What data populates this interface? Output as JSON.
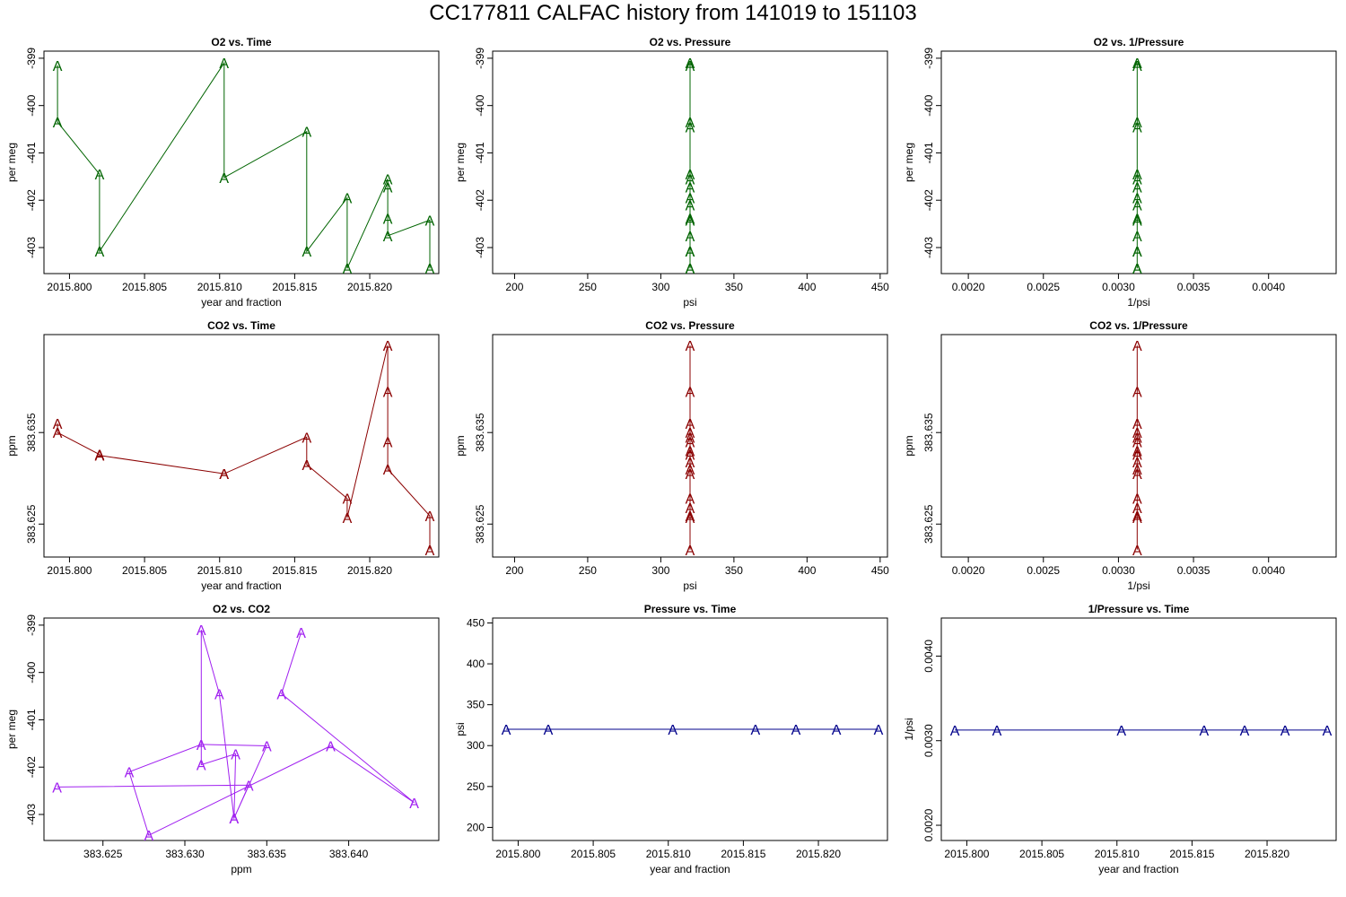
{
  "page": {
    "title": "CC177811   CALFAC history from  141019  to  151103"
  },
  "colors": {
    "o2": "#006400",
    "co2": "#8B0000",
    "o2co2": "#A020F0",
    "pressure": "#00008B",
    "frame": "#000000"
  },
  "chart_data": [
    {
      "type": "line",
      "title": "O2 vs. Time",
      "xlabel": "year and fraction",
      "ylabel": "per meg",
      "color_key": "o2",
      "xlim": [
        2015.7983,
        2015.8246
      ],
      "ylim": [
        -403.55,
        -398.85
      ],
      "xticks": [
        2015.8,
        2015.805,
        2015.81,
        2015.815,
        2015.82
      ],
      "xtick_labels": [
        "2015.800",
        "2015.805",
        "2015.810",
        "2015.815",
        "2015.820"
      ],
      "yticks": [
        -403,
        -402,
        -401,
        -400,
        -399
      ],
      "ytick_labels": [
        "-403",
        "-402",
        "-401",
        "-400",
        "-399"
      ],
      "ytick_rotate": true,
      "marker": "A",
      "x": [
        2015.7992,
        2015.7992,
        2015.802,
        2015.802,
        2015.8103,
        2015.8103,
        2015.8158,
        2015.8158,
        2015.8185,
        2015.8185,
        2015.8212,
        2015.8212,
        2015.8212,
        2015.8212,
        2015.824,
        2015.824
      ],
      "y": [
        -399.15,
        -400.35,
        -401.45,
        -403.08,
        -399.1,
        -401.52,
        -400.55,
        -403.08,
        -401.95,
        -403.44,
        -401.55,
        -401.72,
        -402.38,
        -402.75,
        -402.42,
        -403.44
      ]
    },
    {
      "type": "line",
      "title": "O2 vs. Pressure",
      "xlabel": "psi",
      "ylabel": "per meg",
      "color_key": "o2",
      "xlim": [
        185,
        455
      ],
      "ylim": [
        -403.55,
        -398.85
      ],
      "xticks": [
        200,
        250,
        300,
        350,
        400,
        450
      ],
      "xtick_labels": [
        "200",
        "250",
        "300",
        "350",
        "400",
        "450"
      ],
      "yticks": [
        -403,
        -402,
        -401,
        -400,
        -399
      ],
      "ytick_labels": [
        "-403",
        "-402",
        "-401",
        "-400",
        "-399"
      ],
      "ytick_rotate": true,
      "marker": "A",
      "x": [
        320,
        320,
        320,
        320,
        320,
        320,
        320,
        320,
        320,
        320,
        320,
        320,
        320,
        320,
        320,
        320
      ],
      "y": [
        -399.1,
        -399.15,
        -400.35,
        -400.45,
        -401.45,
        -401.55,
        -401.72,
        -401.95,
        -402.1,
        -402.38,
        -402.42,
        -402.75,
        -403.08,
        -403.08,
        -403.44,
        -403.44
      ]
    },
    {
      "type": "line",
      "title": "O2 vs. 1/Pressure",
      "xlabel": "1/psi",
      "ylabel": "per meg",
      "color_key": "o2",
      "xlim": [
        0.00182,
        0.00445
      ],
      "ylim": [
        -403.55,
        -398.85
      ],
      "xticks": [
        0.002,
        0.0025,
        0.003,
        0.0035,
        0.004
      ],
      "xtick_labels": [
        "0.0020",
        "0.0025",
        "0.0030",
        "0.0035",
        "0.0040"
      ],
      "yticks": [
        -403,
        -402,
        -401,
        -400,
        -399
      ],
      "ytick_labels": [
        "-403",
        "-402",
        "-401",
        "-400",
        "-399"
      ],
      "ytick_rotate": true,
      "marker": "A",
      "x": [
        0.003125,
        0.003125,
        0.003125,
        0.003125,
        0.003125,
        0.003125,
        0.003125,
        0.003125,
        0.003125,
        0.003125,
        0.003125,
        0.003125,
        0.003125,
        0.003125,
        0.003125,
        0.003125
      ],
      "y": [
        -399.1,
        -399.15,
        -400.35,
        -400.45,
        -401.45,
        -401.55,
        -401.72,
        -401.95,
        -402.1,
        -402.38,
        -402.42,
        -402.75,
        -403.08,
        -403.08,
        -403.44,
        -403.44
      ]
    },
    {
      "type": "line",
      "title": "CO2 vs. Time",
      "xlabel": "year and fraction",
      "ylabel": "ppm",
      "color_key": "co2",
      "xlim": [
        2015.7983,
        2015.8246
      ],
      "ylim": [
        383.6214,
        383.6457
      ],
      "xticks": [
        2015.8,
        2015.805,
        2015.81,
        2015.815,
        2015.82
      ],
      "xtick_labels": [
        "2015.800",
        "2015.805",
        "2015.810",
        "2015.815",
        "2015.820"
      ],
      "yticks": [
        383.625,
        383.635
      ],
      "ytick_labels": [
        "383.625",
        "383.635"
      ],
      "ytick_rotate": true,
      "marker": "A",
      "x": [
        2015.7992,
        2015.7992,
        2015.802,
        2015.802,
        2015.8103,
        2015.8103,
        2015.8158,
        2015.8158,
        2015.8185,
        2015.8185,
        2015.8212,
        2015.8212,
        2015.8212,
        2015.8212,
        2015.824,
        2015.824
      ],
      "y": [
        383.636,
        383.635,
        383.6326,
        383.6325,
        383.6305,
        383.6305,
        383.6345,
        383.6315,
        383.6278,
        383.6257,
        383.6445,
        383.6395,
        383.634,
        383.631,
        383.6259,
        383.6222
      ]
    },
    {
      "type": "line",
      "title": "CO2 vs. Pressure",
      "xlabel": "psi",
      "ylabel": "ppm",
      "color_key": "co2",
      "xlim": [
        185,
        455
      ],
      "ylim": [
        383.6214,
        383.6457
      ],
      "xticks": [
        200,
        250,
        300,
        350,
        400,
        450
      ],
      "xtick_labels": [
        "200",
        "250",
        "300",
        "350",
        "400",
        "450"
      ],
      "yticks": [
        383.625,
        383.635
      ],
      "ytick_labels": [
        "383.625",
        "383.635"
      ],
      "ytick_rotate": true,
      "marker": "A",
      "x": [
        320,
        320,
        320,
        320,
        320,
        320,
        320,
        320,
        320,
        320,
        320,
        320,
        320,
        320,
        320,
        320
      ],
      "y": [
        383.6445,
        383.6395,
        383.636,
        383.635,
        383.6345,
        383.634,
        383.633,
        383.6326,
        383.6318,
        383.631,
        383.6305,
        383.6278,
        383.6268,
        383.6259,
        383.6257,
        383.6222
      ]
    },
    {
      "type": "line",
      "title": "CO2 vs. 1/Pressure",
      "xlabel": "1/psi",
      "ylabel": "ppm",
      "color_key": "co2",
      "xlim": [
        0.00182,
        0.00445
      ],
      "ylim": [
        383.6214,
        383.6457
      ],
      "xticks": [
        0.002,
        0.0025,
        0.003,
        0.0035,
        0.004
      ],
      "xtick_labels": [
        "0.0020",
        "0.0025",
        "0.0030",
        "0.0035",
        "0.0040"
      ],
      "yticks": [
        383.625,
        383.635
      ],
      "ytick_labels": [
        "383.625",
        "383.635"
      ],
      "ytick_rotate": true,
      "marker": "A",
      "x": [
        0.003125,
        0.003125,
        0.003125,
        0.003125,
        0.003125,
        0.003125,
        0.003125,
        0.003125,
        0.003125,
        0.003125,
        0.003125,
        0.003125,
        0.003125,
        0.003125,
        0.003125,
        0.003125
      ],
      "y": [
        383.6445,
        383.6395,
        383.636,
        383.635,
        383.6345,
        383.634,
        383.633,
        383.6326,
        383.6318,
        383.631,
        383.6305,
        383.6278,
        383.6268,
        383.6259,
        383.6257,
        383.6222
      ]
    },
    {
      "type": "line",
      "title": "O2 vs. CO2",
      "xlabel": "ppm",
      "ylabel": "per meg",
      "color_key": "o2co2",
      "xlim": [
        383.6214,
        383.6455
      ],
      "ylim": [
        -403.55,
        -398.85
      ],
      "xticks": [
        383.625,
        383.63,
        383.635,
        383.64
      ],
      "xtick_labels": [
        "383.625",
        "383.630",
        "383.635",
        "383.640"
      ],
      "yticks": [
        -403,
        -402,
        -401,
        -400,
        -399
      ],
      "ytick_labels": [
        "-403",
        "-402",
        "-401",
        "-400",
        "-399"
      ],
      "ytick_rotate": true,
      "marker": "A",
      "x": [
        383.6222,
        383.6339,
        383.633,
        383.6331,
        383.631,
        383.631,
        383.6321,
        383.633,
        383.635,
        383.631,
        383.6266,
        383.6278,
        383.6389,
        383.644,
        383.6359,
        383.6371
      ],
      "y": [
        -402.42,
        -402.38,
        -403.08,
        -401.72,
        -401.95,
        -399.1,
        -400.45,
        -403.08,
        -401.55,
        -401.52,
        -402.1,
        -403.44,
        -401.55,
        -402.75,
        -400.45,
        -399.15
      ]
    },
    {
      "type": "line",
      "title": "Pressure vs. Time",
      "xlabel": "year and fraction",
      "ylabel": "psi",
      "color_key": "pressure",
      "xlim": [
        2015.7983,
        2015.8246
      ],
      "ylim": [
        184,
        456
      ],
      "xticks": [
        2015.8,
        2015.805,
        2015.81,
        2015.815,
        2015.82
      ],
      "xtick_labels": [
        "2015.800",
        "2015.805",
        "2015.810",
        "2015.815",
        "2015.820"
      ],
      "yticks": [
        200,
        250,
        300,
        350,
        400,
        450
      ],
      "ytick_labels": [
        "200",
        "250",
        "300",
        "350",
        "400",
        "450"
      ],
      "ytick_rotate": false,
      "marker": "A",
      "x": [
        2015.7992,
        2015.802,
        2015.8103,
        2015.8158,
        2015.8185,
        2015.8212,
        2015.824
      ],
      "y": [
        320,
        320,
        320,
        320,
        320,
        320,
        320
      ]
    },
    {
      "type": "line",
      "title": "1/Pressure vs. Time",
      "xlabel": "year and fraction",
      "ylabel": "1/psi",
      "color_key": "pressure",
      "xlim": [
        2015.7983,
        2015.8246
      ],
      "ylim": [
        0.00182,
        0.00445
      ],
      "xticks": [
        2015.8,
        2015.805,
        2015.81,
        2015.815,
        2015.82
      ],
      "xtick_labels": [
        "2015.800",
        "2015.805",
        "2015.810",
        "2015.815",
        "2015.820"
      ],
      "yticks": [
        0.002,
        0.003,
        0.004
      ],
      "ytick_labels": [
        "0.0020",
        "0.0030",
        "0.0040"
      ],
      "ytick_rotate": true,
      "marker": "A",
      "x": [
        2015.7992,
        2015.802,
        2015.8103,
        2015.8158,
        2015.8185,
        2015.8212,
        2015.824
      ],
      "y": [
        0.003125,
        0.003125,
        0.003125,
        0.003125,
        0.003125,
        0.003125,
        0.003125
      ]
    }
  ]
}
